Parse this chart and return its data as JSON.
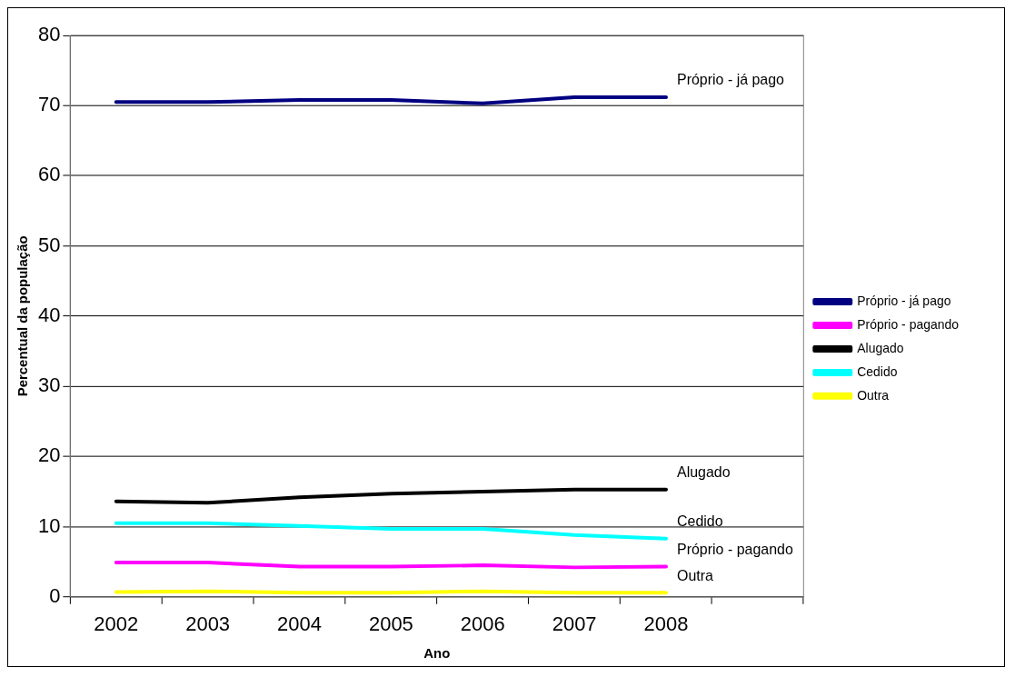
{
  "chart_data": {
    "type": "line",
    "xlabel": "Ano",
    "ylabel": "Percentual da população",
    "categories": [
      "2002",
      "2003",
      "2004",
      "2005",
      "2006",
      "2007",
      "2008",
      null
    ],
    "series": [
      {
        "name": "Próprio - já pago",
        "color": "#000080",
        "values": [
          70.5,
          70.5,
          70.8,
          70.8,
          70.3,
          71.2,
          71.2,
          null
        ]
      },
      {
        "name": "Próprio - pagando",
        "color": "#ff00ff",
        "values": [
          4.9,
          4.9,
          4.3,
          4.3,
          4.5,
          4.2,
          4.3,
          null
        ]
      },
      {
        "name": "Alugado",
        "color": "#000000",
        "values": [
          13.6,
          13.4,
          14.2,
          14.7,
          15.0,
          15.3,
          15.3,
          null
        ]
      },
      {
        "name": "Cedido",
        "color": "#00ffff",
        "values": [
          10.5,
          10.5,
          10.1,
          9.7,
          9.7,
          8.8,
          8.3,
          null
        ]
      },
      {
        "name": "Outra",
        "color": "#ffff00",
        "values": [
          0.7,
          0.8,
          0.6,
          0.6,
          0.8,
          0.6,
          0.6,
          null
        ]
      }
    ],
    "annotations": [
      {
        "text": "Próprio - já pago",
        "x": "2008",
        "y": 71.2
      },
      {
        "text": "Alugado",
        "x": "2008",
        "y": 15.3
      },
      {
        "text": "Cedido",
        "x": "2008",
        "y": 8.3
      },
      {
        "text": "Próprio - pagando",
        "x": "2008",
        "y": 4.3
      },
      {
        "text": "Outra",
        "x": "2008",
        "y": 0.6
      }
    ],
    "ylim": [
      0,
      80
    ],
    "yticks": [
      0,
      10,
      20,
      30,
      40,
      50,
      60,
      70,
      80
    ],
    "grid": "y",
    "legend": "right",
    "marker": "none",
    "line_style": "solid"
  }
}
